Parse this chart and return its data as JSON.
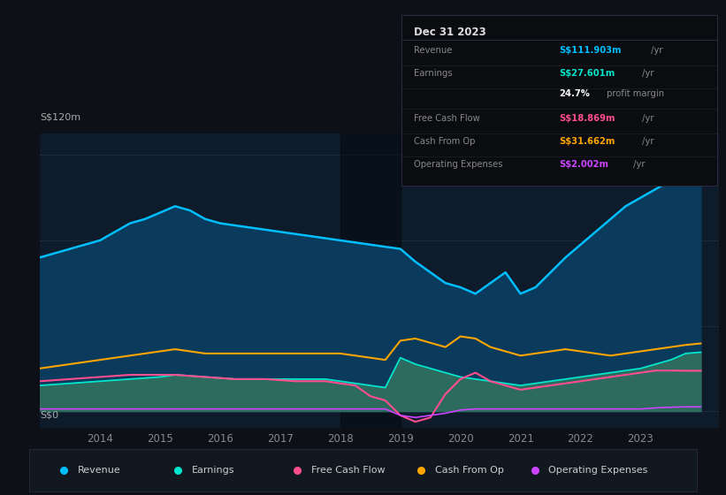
{
  "bg_color": "#0d1117",
  "plot_bg_color": "#0d1b2a",
  "ylabel": "S$120m",
  "y0_label": "S$0",
  "years": [
    2013.0,
    2013.25,
    2013.5,
    2013.75,
    2014.0,
    2014.25,
    2014.5,
    2014.75,
    2015.0,
    2015.25,
    2015.5,
    2015.75,
    2016.0,
    2016.25,
    2016.5,
    2016.75,
    2017.0,
    2017.25,
    2017.5,
    2017.75,
    2018.0,
    2018.25,
    2018.5,
    2018.75,
    2019.0,
    2019.25,
    2019.5,
    2019.75,
    2020.0,
    2020.25,
    2020.5,
    2020.75,
    2021.0,
    2021.25,
    2021.5,
    2021.75,
    2022.0,
    2022.25,
    2022.5,
    2022.75,
    2023.0,
    2023.25,
    2023.5,
    2023.75,
    2024.0
  ],
  "revenue": [
    72,
    74,
    76,
    78,
    80,
    84,
    88,
    90,
    93,
    96,
    94,
    90,
    88,
    87,
    86,
    85,
    84,
    83,
    82,
    81,
    80,
    79,
    78,
    77,
    76,
    70,
    65,
    60,
    58,
    55,
    60,
    65,
    55,
    58,
    65,
    72,
    78,
    84,
    90,
    96,
    100,
    104,
    108,
    112,
    112
  ],
  "earnings": [
    12,
    12.5,
    13,
    13.5,
    14,
    14.5,
    15,
    15.5,
    16,
    17,
    16.5,
    16,
    15.5,
    15,
    15,
    15,
    15,
    15,
    15,
    15,
    14,
    13,
    12,
    11,
    25,
    22,
    20,
    18,
    16,
    15,
    14,
    13,
    12,
    13,
    14,
    15,
    16,
    17,
    18,
    19,
    20,
    22,
    24,
    27,
    27.6
  ],
  "cash_from_op": [
    20,
    21,
    22,
    23,
    24,
    25,
    26,
    27,
    28,
    29,
    28,
    27,
    27,
    27,
    27,
    27,
    27,
    27,
    27,
    27,
    27,
    26,
    25,
    24,
    33,
    34,
    32,
    30,
    35,
    34,
    30,
    28,
    26,
    27,
    28,
    29,
    28,
    27,
    26,
    27,
    28,
    29,
    30,
    31,
    31.7
  ],
  "free_cash_flow": [
    14,
    14.5,
    15,
    15.5,
    16,
    16.5,
    17,
    17,
    17,
    17,
    16.5,
    16,
    15.5,
    15,
    15,
    15,
    14.5,
    14,
    14,
    14,
    13,
    12,
    7,
    5,
    -2,
    -5,
    -3,
    8,
    15,
    18,
    14,
    12,
    10,
    11,
    12,
    13,
    14,
    15,
    16,
    17,
    18,
    19,
    19,
    18.9,
    18.9
  ],
  "op_expenses": [
    1,
    1,
    1,
    1,
    1,
    1,
    1,
    1,
    1,
    1,
    1,
    1,
    1,
    1,
    1,
    1,
    1,
    1,
    1,
    1,
    1,
    1,
    1,
    1,
    -2,
    -3,
    -2,
    -1,
    0.5,
    1,
    1,
    1,
    1,
    1,
    1,
    1,
    1,
    1,
    1,
    1,
    1,
    1.5,
    1.8,
    2,
    2
  ],
  "revenue_color": "#00bfff",
  "revenue_fill": "#0a3a5c",
  "earnings_color": "#00e5cc",
  "earnings_fill": "#2d6b5e",
  "cash_from_op_color": "#ffa500",
  "free_cash_flow_color": "#ff4d8d",
  "op_expenses_color": "#cc44ff",
  "highlight_start": 2018.0,
  "highlight_end": 2019.0,
  "xlim": [
    2013.0,
    2024.3
  ],
  "ylim": [
    -8,
    130
  ],
  "xticks": [
    2014,
    2015,
    2016,
    2017,
    2018,
    2019,
    2020,
    2021,
    2022,
    2023
  ],
  "info_box": {
    "title": "Dec 31 2023",
    "rows": [
      {
        "label": "Revenue",
        "value": "S$111.903m",
        "value_color": "#00bfff",
        "suffix": " /yr"
      },
      {
        "label": "Earnings",
        "value": "S$27.601m",
        "value_color": "#00e5cc",
        "suffix": " /yr"
      },
      {
        "label": "",
        "value": "24.7%",
        "value_color": "#ffffff",
        "suffix": " profit margin"
      },
      {
        "label": "Free Cash Flow",
        "value": "S$18.869m",
        "value_color": "#ff4d8d",
        "suffix": " /yr"
      },
      {
        "label": "Cash From Op",
        "value": "S$31.662m",
        "value_color": "#ffa500",
        "suffix": " /yr"
      },
      {
        "label": "Operating Expenses",
        "value": "S$2.002m",
        "value_color": "#cc44ff",
        "suffix": " /yr"
      }
    ]
  },
  "legend": [
    {
      "label": "Revenue",
      "color": "#00bfff"
    },
    {
      "label": "Earnings",
      "color": "#00e5cc"
    },
    {
      "label": "Free Cash Flow",
      "color": "#ff4d8d"
    },
    {
      "label": "Cash From Op",
      "color": "#ffa500"
    },
    {
      "label": "Operating Expenses",
      "color": "#cc44ff"
    }
  ]
}
